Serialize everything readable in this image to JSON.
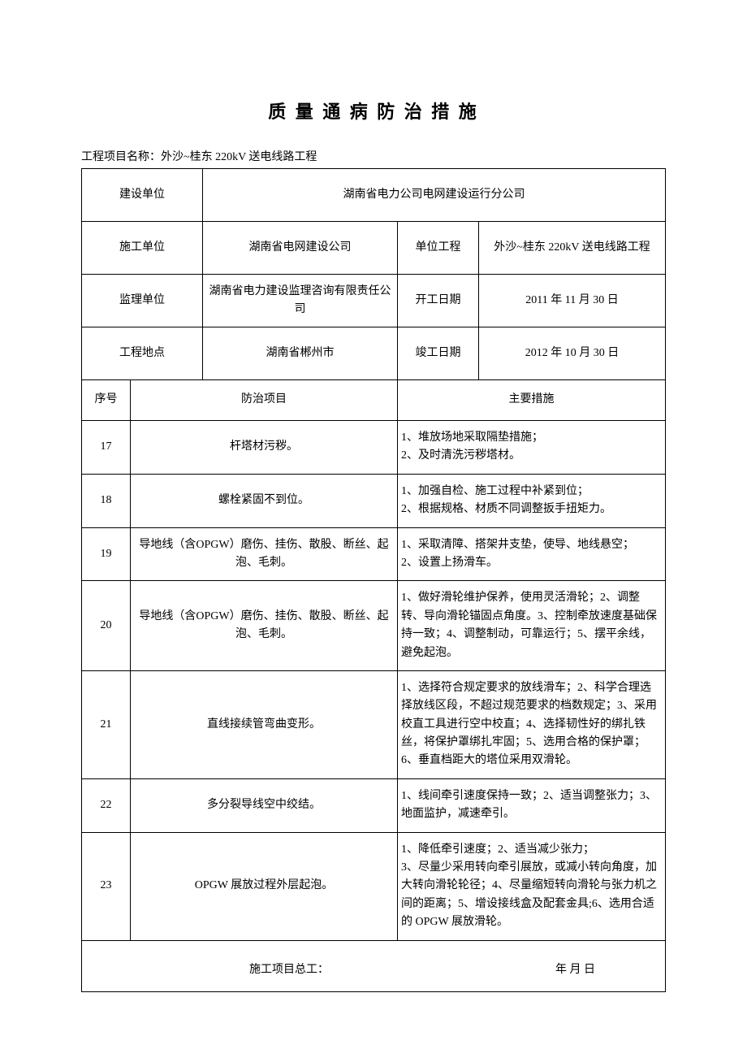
{
  "title": "质 量 通 病  防 治 措 施",
  "projectNameLabel": "工程项目名称：外沙~桂东 220kV 送电线路工程",
  "header": {
    "constructionUnit": {
      "label": "建设单位",
      "value": "湖南省电力公司电网建设运行分公司"
    },
    "contractor": {
      "label": "施工单位",
      "value": "湖南省电网建设公司"
    },
    "unitProject": {
      "label": "单位工程",
      "value": "外沙~桂东 220kV 送电线路工程"
    },
    "supervisor": {
      "label": "监理单位",
      "value": "湖南省电力建设监理咨询有限责任公司"
    },
    "startDate": {
      "label": "开工日期",
      "value": "2011 年 11 月 30 日"
    },
    "location": {
      "label": "工程地点",
      "value": "湖南省郴州市"
    },
    "endDate": {
      "label": "竣工日期",
      "value": "2012 年 10 月 30 日"
    }
  },
  "columns": {
    "seq": "序号",
    "item": "防治项目",
    "measure": "主要措施"
  },
  "rows": [
    {
      "seq": "17",
      "item": "杆塔材污秽。",
      "measure": "1、堆放场地采取隔垫措施；\n2、及时清洗污秽塔材。"
    },
    {
      "seq": "18",
      "item": "螺栓紧固不到位。",
      "measure": "1、加强自检、施工过程中补紧到位；\n2、根据规格、材质不同调整扳手扭矩力。"
    },
    {
      "seq": "19",
      "item": "导地线（含OPGW）磨伤、挂伤、散股、断丝、起泡、毛刺。",
      "measure": "1、采取清障、搭架井支垫，使导、地线悬空；\n2、设置上扬滑车。"
    },
    {
      "seq": "20",
      "item": "导地线（含OPGW）磨伤、挂伤、散股、断丝、起泡、毛刺。",
      "measure": "1、做好滑轮维护保养，使用灵活滑轮；2、调整转、导向滑轮锚固点角度。3、控制牵放速度基础保持一致；4、调整制动，可靠运行；5、摆平余线，避免起泡。"
    },
    {
      "seq": "21",
      "item": "直线接续管弯曲变形。",
      "measure": "1、选择符合规定要求的放线滑车；2、科学合理选择放线区段，不超过规范要求的档数规定；3、采用校直工具进行空中校直；4、选择韧性好的绑扎铁丝，将保护罩绑扎牢固；5、选用合格的保护罩；6、垂直档距大的塔位采用双滑轮。"
    },
    {
      "seq": "22",
      "item": "多分裂导线空中绞结。",
      "measure": "1、线间牵引速度保持一致；2、适当调整张力；3、地面监护，减速牵引。"
    },
    {
      "seq": "23",
      "item": "OPGW 展放过程外层起泡。",
      "measure": "1、降低牵引速度；2、适当减少张力；\n3、尽量少采用转向牵引展放，或减小转向角度，加大转向滑轮轮径；4、尽量缩短转向滑轮与张力机之间的距离；5、增设接线盒及配套金具;6、选用合适的 OPGW 展放滑轮。"
    }
  ],
  "footer": {
    "engineer": "施工项目总工：",
    "date": "年        月        日"
  }
}
